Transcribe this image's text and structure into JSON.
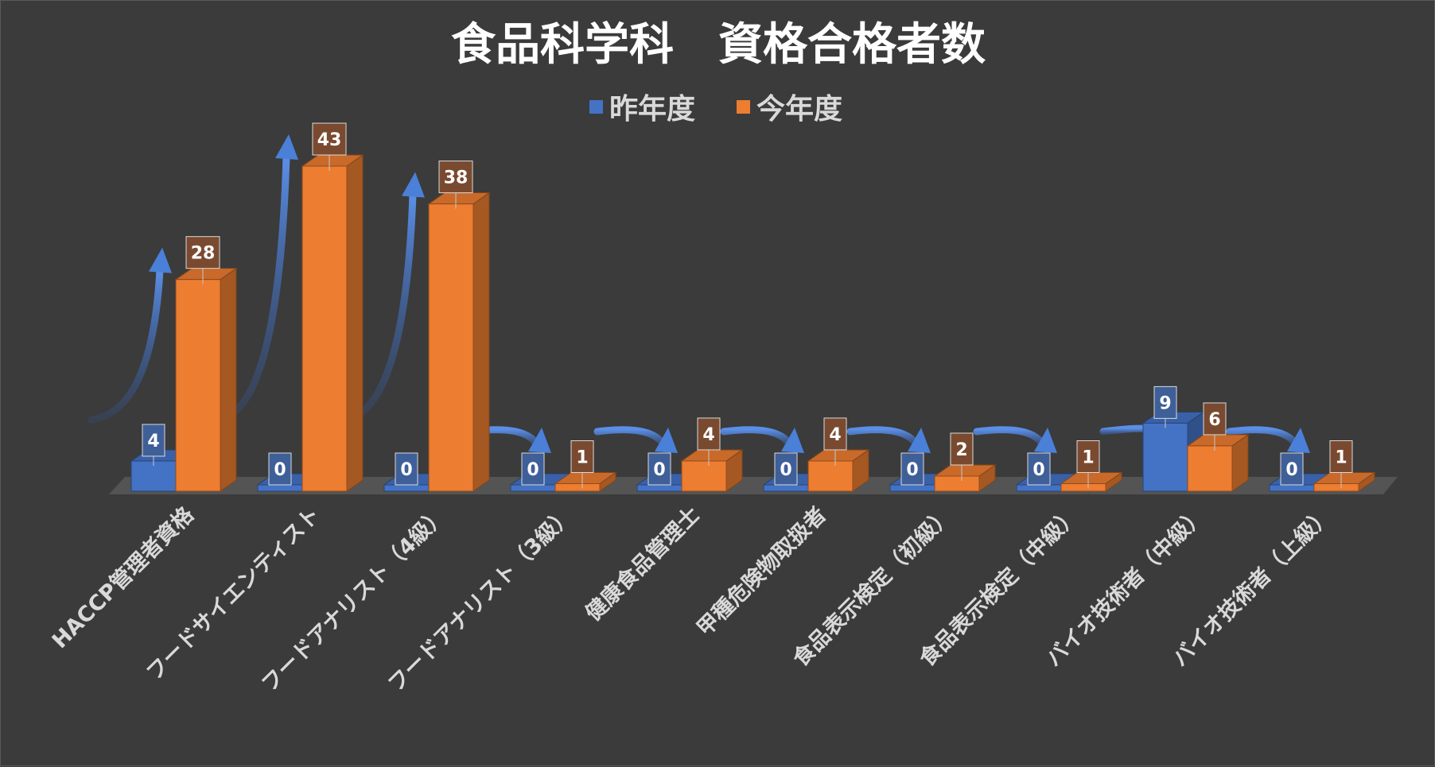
{
  "chart_data": {
    "type": "bar",
    "title": "食品科学科　資格合格者数",
    "categories": [
      "HACCP管理者資格",
      "フードサイエンティスト",
      "フードアナリスト（4級）",
      "フードアナリスト（3級）",
      "健康食品管理士",
      "甲種危険物取扱者",
      "食品表示検定（初級）",
      "食品表示検定（中級）",
      "バイオ技術者（中級）",
      "バイオ技術者（上級）"
    ],
    "series": [
      {
        "name": "昨年度",
        "values": [
          4,
          0,
          0,
          0,
          0,
          0,
          0,
          0,
          9,
          0
        ],
        "color": "#4472c4"
      },
      {
        "name": "今年度",
        "values": [
          28,
          43,
          38,
          1,
          4,
          4,
          2,
          1,
          6,
          1
        ],
        "color": "#ed7d31"
      }
    ],
    "ylim": [
      0,
      45
    ],
    "legend_position": "top",
    "grid": false,
    "data_labels": true,
    "colors": {
      "background": "#3b3b3b",
      "floor": "#545454",
      "label_box_last_year": "#3f5f99",
      "label_box_this_year": "#7a4a30",
      "arrow": "#4a80d8"
    }
  }
}
